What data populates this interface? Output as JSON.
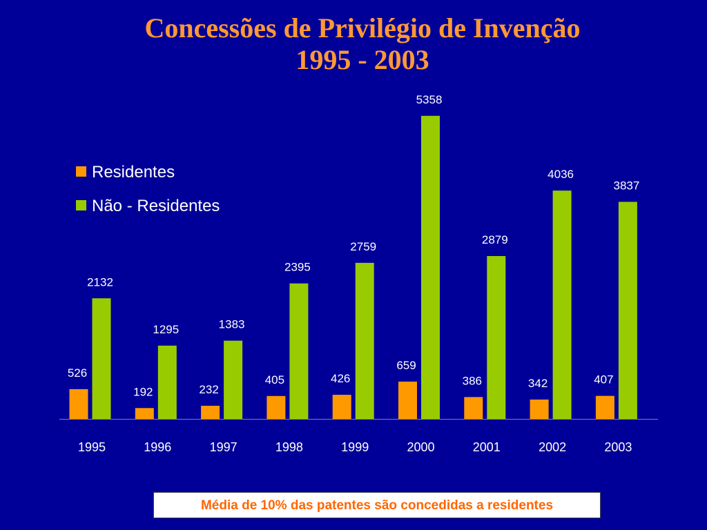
{
  "chart_data": {
    "type": "bar",
    "title": [
      "Concessões de Privilégio de Invenção",
      "1995 - 2003"
    ],
    "categories": [
      "1995",
      "1996",
      "1997",
      "1998",
      "1999",
      "2000",
      "2001",
      "2002",
      "2003"
    ],
    "series": [
      {
        "name": "Residentes",
        "color": "#ff9900",
        "values": [
          526,
          192,
          232,
          405,
          426,
          659,
          386,
          342,
          407
        ]
      },
      {
        "name": "Não - Residentes",
        "color": "#99cc00",
        "values": [
          2132,
          1295,
          1383,
          2395,
          2759,
          5358,
          2879,
          4036,
          3837
        ]
      }
    ],
    "ylim": [
      0,
      5600
    ],
    "grid": false,
    "legend": "top-left",
    "colors": {
      "background": "#000099",
      "title": "#ff9933",
      "labels": "#ffffff"
    }
  },
  "note": "Média de 10% das patentes são concedidas  a residentes"
}
